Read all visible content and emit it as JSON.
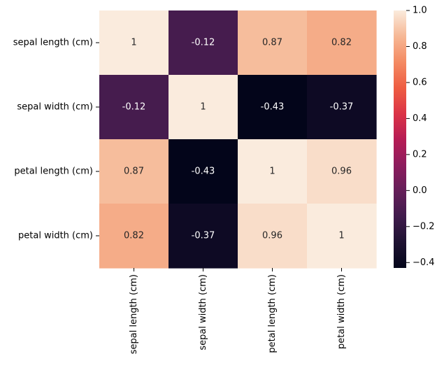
{
  "chart_data": {
    "type": "heatmap",
    "title": "",
    "xlabel": "",
    "ylabel": "",
    "row_labels": [
      "sepal length (cm)",
      "sepal width (cm)",
      "petal length (cm)",
      "petal width (cm)"
    ],
    "col_labels": [
      "sepal length (cm)",
      "sepal width (cm)",
      "petal length (cm)",
      "petal width (cm)"
    ],
    "values": [
      [
        1.0,
        -0.12,
        0.87,
        0.82
      ],
      [
        -0.12,
        1.0,
        -0.43,
        -0.37
      ],
      [
        0.87,
        -0.43,
        1.0,
        0.96
      ],
      [
        0.82,
        -0.37,
        0.96,
        1.0
      ]
    ],
    "annotations": [
      [
        "1",
        "-0.12",
        "0.87",
        "0.82"
      ],
      [
        "-0.12",
        "1",
        "-0.43",
        "-0.37"
      ],
      [
        "0.87",
        "-0.43",
        "1",
        "0.96"
      ],
      [
        "0.82",
        "-0.37",
        "0.96",
        "1"
      ]
    ],
    "colormap": "rocket",
    "colorbar": {
      "vmin": -0.43,
      "vmax": 1.0,
      "ticks": [
        -0.4,
        -0.2,
        0.0,
        0.2,
        0.4,
        0.6,
        0.8,
        1.0
      ],
      "tick_labels": [
        "−0.4",
        "−0.2",
        "0.0",
        "0.2",
        "0.4",
        "0.6",
        "0.8",
        "1.0"
      ]
    },
    "x_tick_rotation": "vertical",
    "grid": false,
    "legend": "colorbar-right"
  }
}
